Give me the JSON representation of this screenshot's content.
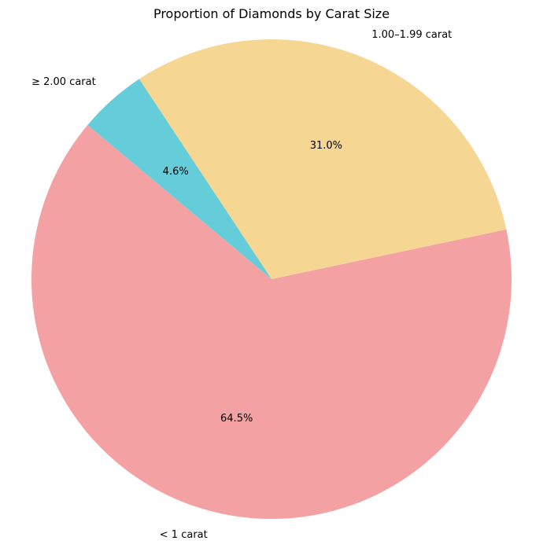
{
  "chart_data": {
    "type": "pie",
    "title": "Proportion of Diamonds by Carat Size",
    "start_angle_deg": 140,
    "direction": "counterclockwise",
    "slices": [
      {
        "label": "< 1 carat",
        "value": 64.5,
        "pct_label": "64.5%",
        "color": "#f3a1a3"
      },
      {
        "label": "1.00–1.99 carat",
        "value": 31.0,
        "pct_label": "31.0%",
        "color": "#f6d693"
      },
      {
        "label": "≥ 2.00 carat",
        "value": 4.6,
        "pct_label": "4.6%",
        "color": "#65cdda"
      }
    ]
  }
}
